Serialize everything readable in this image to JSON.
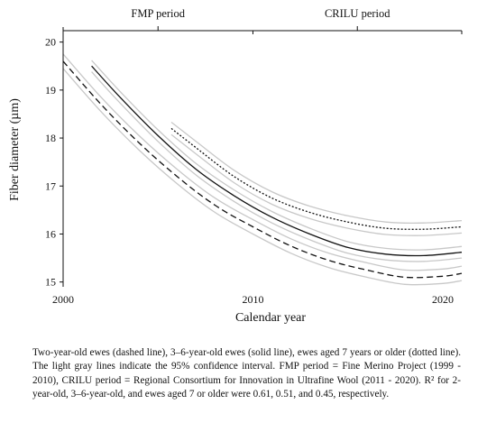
{
  "chart_data": {
    "type": "line",
    "xlabel": "Calendar year",
    "ylabel": "Fiber diameter (µm)",
    "xlim": [
      2000,
      2021
    ],
    "ylim": [
      14.9,
      20.2
    ],
    "x_ticks": [
      2000,
      2010,
      2020
    ],
    "x_tick_labels": [
      "2000",
      "2010",
      "2020"
    ],
    "y_ticks": [
      15,
      16,
      17,
      18,
      19,
      20
    ],
    "y_tick_labels": [
      "15",
      "16",
      "17",
      "18",
      "19",
      "20"
    ],
    "grid": false,
    "legend": "none",
    "periods": [
      {
        "label": "FMP period",
        "start": 2000,
        "end": 2010
      },
      {
        "label": "CRILU period",
        "start": 2010,
        "end": 2021
      }
    ],
    "series": [
      {
        "style": "dashed",
        "color": "#111111",
        "x": [
          2000,
          2002,
          2004,
          2006,
          2008,
          2010,
          2012,
          2014,
          2016,
          2018,
          2020,
          2021
        ],
        "y": [
          19.6,
          18.7,
          17.9,
          17.2,
          16.6,
          16.15,
          15.75,
          15.45,
          15.25,
          15.1,
          15.12,
          15.18
        ],
        "ci_halfwidth": 0.15
      },
      {
        "style": "solid",
        "color": "#111111",
        "x": [
          2001.5,
          2003,
          2005,
          2007,
          2009,
          2011,
          2013,
          2015,
          2017,
          2019,
          2021
        ],
        "y": [
          19.5,
          18.85,
          18.05,
          17.35,
          16.8,
          16.35,
          16.0,
          15.72,
          15.58,
          15.55,
          15.62
        ],
        "ci_halfwidth": 0.12
      },
      {
        "style": "dotted",
        "color": "#111111",
        "x": [
          2005.7,
          2007,
          2009,
          2011,
          2013,
          2015,
          2017,
          2019,
          2021
        ],
        "y": [
          18.2,
          17.8,
          17.2,
          16.75,
          16.45,
          16.25,
          16.12,
          16.1,
          16.15
        ],
        "ci_halfwidth": 0.13
      }
    ],
    "ci_color": "#c8c8c8"
  },
  "caption": "Two-year-old ewes (dashed line), 3–6-year-old ewes (solid line), ewes aged 7 years or older (dotted line). The light gray lines indicate the 95% confidence interval. FMP period = Fine Merino Project (1999 - 2010), CRILU period = Regional Consortium for Innovation in Ultrafine Wool (2011 - 2020). R² for 2-year-old, 3–6-year-old, and ewes aged 7 or older were 0.61, 0.51, and 0.45, respectively."
}
